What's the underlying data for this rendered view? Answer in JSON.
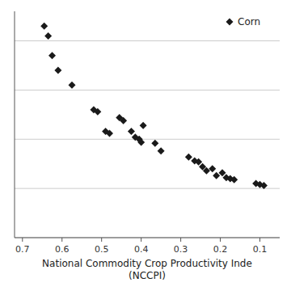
{
  "chart_data": {
    "type": "scatter",
    "title": "",
    "xlabel": "National Commodity Crop Productivity Inde\n(NCCPI)",
    "x": [
      0.645,
      0.635,
      0.625,
      0.61,
      0.575,
      0.52,
      0.51,
      0.49,
      0.48,
      0.455,
      0.445,
      0.425,
      0.415,
      0.405,
      0.4,
      0.395,
      0.365,
      0.35,
      0.28,
      0.265,
      0.255,
      0.245,
      0.235,
      0.22,
      0.21,
      0.195,
      0.185,
      0.175,
      0.165,
      0.11,
      0.1,
      0.09
    ],
    "series": [
      {
        "name": "Corn",
        "color": "#1a1a1a",
        "marker": "diamond",
        "values": [
          215,
          205,
          185,
          170,
          155,
          130,
          128,
          108,
          106,
          122,
          119,
          108,
          102,
          100,
          97,
          114,
          96,
          88,
          82,
          78,
          77,
          72,
          68,
          70,
          63,
          66,
          61,
          60,
          59,
          55,
          54,
          53
        ]
      }
    ],
    "xlim": [
      0.72,
      0.05
    ],
    "xticks": [
      0.7,
      0.6,
      0.5,
      0.4,
      0.3,
      0.2,
      0.1
    ],
    "ylim": [
      0,
      230
    ],
    "yticks": [
      0,
      50,
      100,
      150,
      200
    ],
    "grid": "y",
    "legend": "upper right",
    "tick_labels": "x"
  }
}
